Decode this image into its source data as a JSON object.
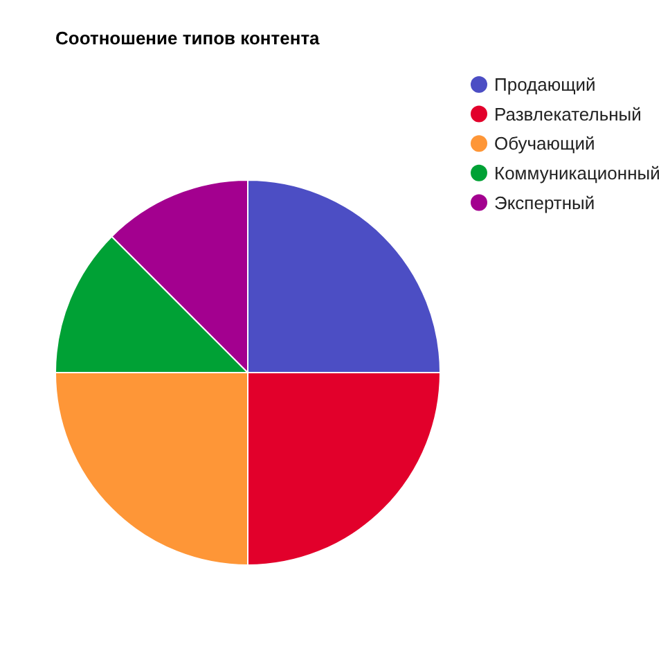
{
  "chart_data": {
    "type": "pie",
    "title": "Соотношение типов контента",
    "categories": [
      "Продающий",
      "Развлекательный",
      "Обучающий",
      "Коммуникационный",
      "Экспертный"
    ],
    "values": [
      25,
      25,
      25,
      12.5,
      12.5
    ],
    "colors": [
      "#4c4ec4",
      "#e2002b",
      "#fe9637",
      "#00a135",
      "#a3008f"
    ],
    "legend": "top right"
  }
}
